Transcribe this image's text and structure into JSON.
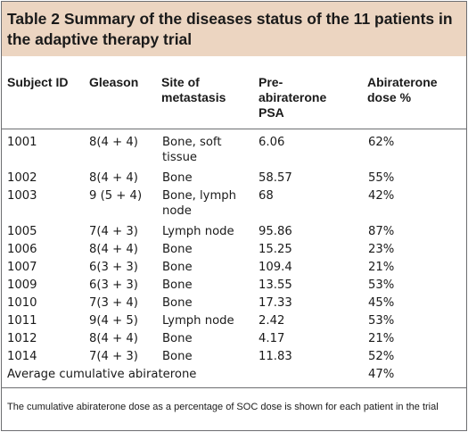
{
  "table": {
    "title": "Table 2 Summary of the diseases status of the 11 patients in the adaptive therapy trial",
    "headers": {
      "subject_id": "Subject ID",
      "gleason": "Gleason",
      "site": "Site of\nmetastasis",
      "psa": "Pre-\nabiraterone\nPSA",
      "dose": "Abiraterone\ndose %"
    },
    "rows": [
      {
        "subject_id": "1001",
        "gleason": "8(4 + 4)",
        "site": "Bone, soft",
        "site2": "tissue",
        "psa": "6.06",
        "dose": "62%"
      },
      {
        "subject_id": "1002",
        "gleason": "8(4 + 4)",
        "site": "Bone",
        "site2": "",
        "psa": "58.57",
        "dose": "55%"
      },
      {
        "subject_id": "1003",
        "gleason": "9 (5 + 4)",
        "site": "Bone, lymph",
        "site2": "node",
        "psa": "68",
        "dose": "42%"
      },
      {
        "subject_id": "1005",
        "gleason": "7(4 + 3)",
        "site": "Lymph node",
        "site2": "",
        "psa": "95.86",
        "dose": "87%"
      },
      {
        "subject_id": "1006",
        "gleason": "8(4 + 4)",
        "site": "Bone",
        "site2": "",
        "psa": "15.25",
        "dose": "23%"
      },
      {
        "subject_id": "1007",
        "gleason": "6(3 + 3)",
        "site": "Bone",
        "site2": "",
        "psa": "109.4",
        "dose": "21%"
      },
      {
        "subject_id": "1009",
        "gleason": "6(3 + 3)",
        "site": "Bone",
        "site2": "",
        "psa": "13.55",
        "dose": "53%"
      },
      {
        "subject_id": "1010",
        "gleason": "7(3 + 4)",
        "site": "Bone",
        "site2": "",
        "psa": "17.33",
        "dose": "45%"
      },
      {
        "subject_id": "1011",
        "gleason": "9(4 + 5)",
        "site": "Lymph node",
        "site2": "",
        "psa": "2.42",
        "dose": "53%"
      },
      {
        "subject_id": "1012",
        "gleason": "8(4 + 4)",
        "site": "Bone",
        "site2": "",
        "psa": "4.17",
        "dose": "21%"
      },
      {
        "subject_id": "1014",
        "gleason": "7(4 + 3)",
        "site": "Bone",
        "site2": "",
        "psa": "11.83",
        "dose": "52%"
      }
    ],
    "summary": {
      "label": "Average cumulative abiraterone",
      "dose": "47%"
    },
    "footnote": "The cumulative abiraterone dose as a percentage of SOC dose is shown for each patient in the trial"
  }
}
